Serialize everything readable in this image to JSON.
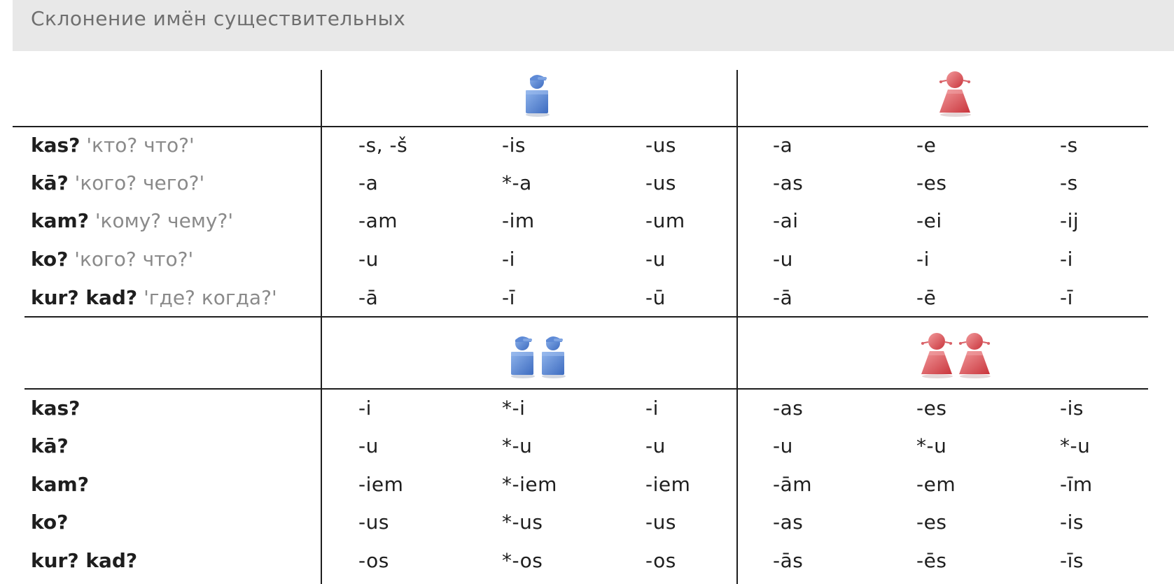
{
  "title": "Склонение имён существительных",
  "icons": {
    "masc_singular": "male-person-icon",
    "fem_singular": "female-person-icon",
    "masc_plural": "two-male-persons-icon",
    "fem_plural": "two-female-persons-icon",
    "masc_color": "#4a78c8",
    "fem_color": "#d94f55"
  },
  "singular": {
    "rows": [
      {
        "question": "kas?",
        "gloss": "'кто? что?'",
        "endings": [
          "-s, -š",
          "-is",
          "-us",
          "-a",
          "-e",
          "-s"
        ]
      },
      {
        "question": "kā?",
        "gloss": "'кого? чего?'",
        "endings": [
          "-a",
          "*-a",
          "-us",
          "-as",
          "-es",
          "-s"
        ]
      },
      {
        "question": "kam?",
        "gloss": "'кому? чему?'",
        "endings": [
          "-am",
          "-im",
          "-um",
          "-ai",
          "-ei",
          "-ij"
        ]
      },
      {
        "question": "ko?",
        "gloss": "'кого? что?'",
        "endings": [
          "-u",
          "-i",
          "-u",
          "-u",
          "-i",
          "-i"
        ]
      },
      {
        "question": "kur? kad?",
        "gloss": "'где? когда?'",
        "endings": [
          "-ā",
          "-ī",
          "-ū",
          "-ā",
          "-ē",
          "-ī"
        ]
      }
    ]
  },
  "plural": {
    "rows": [
      {
        "question": "kas?",
        "endings": [
          "-i",
          "*-i",
          "-i",
          "-as",
          "-es",
          "-is"
        ]
      },
      {
        "question": "kā?",
        "endings": [
          "-u",
          "*-u",
          "-u",
          "-u",
          "*-u",
          "*-u"
        ]
      },
      {
        "question": "kam?",
        "endings": [
          "-iem",
          "*-iem",
          "-iem",
          "-ām",
          "-em",
          "-īm"
        ]
      },
      {
        "question": "ko?",
        "endings": [
          "-us",
          "*-us",
          "-us",
          "-as",
          "-es",
          "-is"
        ]
      },
      {
        "question": "kur? kad?",
        "endings": [
          "-os",
          "*-os",
          "-os",
          "-ās",
          "-ēs",
          "-īs"
        ]
      }
    ]
  }
}
